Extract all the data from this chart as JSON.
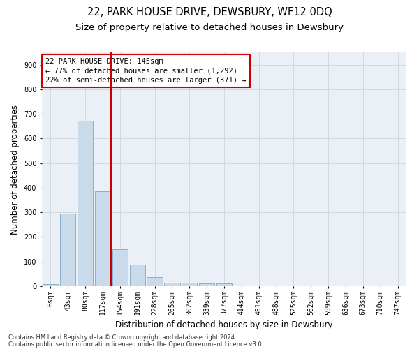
{
  "title": "22, PARK HOUSE DRIVE, DEWSBURY, WF12 0DQ",
  "subtitle": "Size of property relative to detached houses in Dewsbury",
  "xlabel": "Distribution of detached houses by size in Dewsbury",
  "ylabel": "Number of detached properties",
  "categories": [
    "6sqm",
    "43sqm",
    "80sqm",
    "117sqm",
    "154sqm",
    "191sqm",
    "228sqm",
    "265sqm",
    "302sqm",
    "339sqm",
    "377sqm",
    "414sqm",
    "451sqm",
    "488sqm",
    "525sqm",
    "562sqm",
    "599sqm",
    "636sqm",
    "673sqm",
    "710sqm",
    "747sqm"
  ],
  "values": [
    8,
    295,
    672,
    385,
    150,
    88,
    37,
    15,
    14,
    11,
    11,
    0,
    0,
    0,
    0,
    0,
    0,
    0,
    0,
    0,
    0
  ],
  "bar_color": "#c9daea",
  "bar_edge_color": "#7aaac8",
  "annotation_line1": "22 PARK HOUSE DRIVE: 145sqm",
  "annotation_line2": "← 77% of detached houses are smaller (1,292)",
  "annotation_line3": "22% of semi-detached houses are larger (371) →",
  "annotation_box_facecolor": "#ffffff",
  "annotation_box_edgecolor": "#cc0000",
  "footnote1": "Contains HM Land Registry data © Crown copyright and database right 2024.",
  "footnote2": "Contains public sector information licensed under the Open Government Licence v3.0.",
  "ylim": [
    0,
    950
  ],
  "yticks": [
    0,
    100,
    200,
    300,
    400,
    500,
    600,
    700,
    800,
    900
  ],
  "bg_color": "#eaf0f6",
  "grid_color": "#c8d0d8",
  "title_fontsize": 10.5,
  "subtitle_fontsize": 9.5,
  "tick_fontsize": 7,
  "ylabel_fontsize": 8.5,
  "xlabel_fontsize": 8.5,
  "annot_fontsize": 7.5,
  "footnote_fontsize": 6,
  "red_line_color": "#cc0000",
  "red_line_x": 3.5
}
